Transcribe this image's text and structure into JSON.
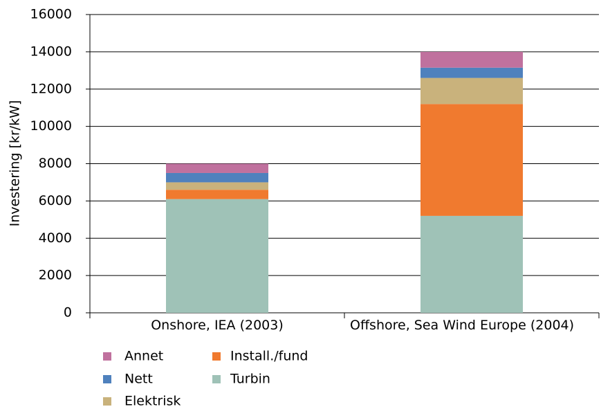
{
  "chart_data": {
    "type": "stacked_bar",
    "y_label": "Investering [kr/kW]",
    "categories": [
      "Onshore, IEA (2003)",
      "Offshore, Sea Wind Europe (2004)"
    ],
    "series": [
      {
        "name": "Turbin",
        "color": "#9fc2b7",
        "values": [
          6100,
          5200
        ]
      },
      {
        "name": "Install./fund",
        "color": "#f07a2f",
        "values": [
          500,
          6000
        ]
      },
      {
        "name": "Elektrisk",
        "color": "#c9b27c",
        "values": [
          400,
          1400
        ]
      },
      {
        "name": "Nett",
        "color": "#4f81bd",
        "values": [
          500,
          550
        ]
      },
      {
        "name": "Annet",
        "color": "#c0719e",
        "values": [
          500,
          850
        ]
      }
    ],
    "ylim": [
      0,
      16000
    ],
    "yticks": [
      0,
      2000,
      4000,
      6000,
      8000,
      10000,
      12000,
      14000,
      16000
    ],
    "grid": true
  }
}
